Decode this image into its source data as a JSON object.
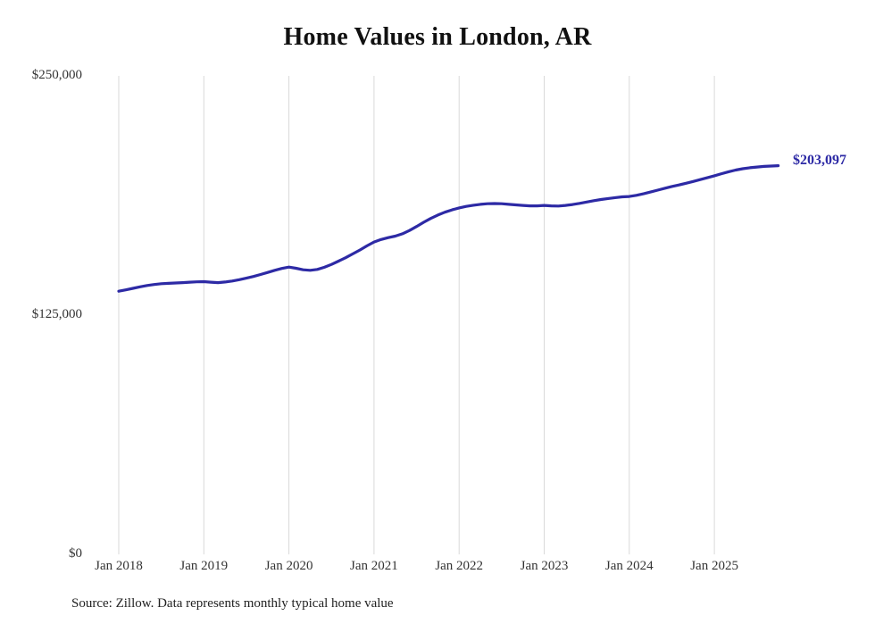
{
  "chart_data": {
    "type": "line",
    "title": "Home Values in London, AR",
    "series_name": "Monthly typical home value",
    "x_start": "Jan 2018",
    "x_end": "Oct 2025",
    "x_frequency": "monthly",
    "values": [
      137500,
      138200,
      139000,
      139800,
      140500,
      141000,
      141400,
      141600,
      141800,
      142000,
      142200,
      142400,
      142500,
      142200,
      142000,
      142300,
      142800,
      143500,
      144300,
      145200,
      146200,
      147300,
      148400,
      149400,
      150100,
      149500,
      148700,
      148400,
      148900,
      150000,
      151500,
      153200,
      155000,
      157000,
      159000,
      161200,
      163200,
      164500,
      165500,
      166300,
      167500,
      169200,
      171300,
      173500,
      175500,
      177300,
      178800,
      180000,
      181000,
      181800,
      182400,
      182900,
      183200,
      183300,
      183200,
      182900,
      182600,
      182300,
      182100,
      182100,
      182300,
      182100,
      182000,
      182300,
      182800,
      183400,
      184100,
      184800,
      185400,
      185900,
      186400,
      186800,
      187000,
      187600,
      188400,
      189300,
      190300,
      191300,
      192200,
      193000,
      193900,
      194800,
      195800,
      196800,
      197800,
      198900,
      199900,
      200800,
      201500,
      202000,
      202400,
      202700,
      202900,
      203097
    ],
    "ylim": [
      0,
      250000
    ],
    "yticks": [
      "$0",
      "$125,000",
      "$250,000"
    ],
    "xticks": [
      "Jan 2018",
      "Jan 2019",
      "Jan 2020",
      "Jan 2021",
      "Jan 2022",
      "Jan 2023",
      "Jan 2024",
      "Jan 2025"
    ],
    "end_label": "$203,097",
    "latest_value": 203097,
    "line_color": "#2d2aa5",
    "grid_color": "#d9d9d9",
    "grid": "vertical-yearly",
    "legend": "none"
  },
  "source": {
    "text": "Source: Zillow. Data represents monthly typical home value"
  }
}
